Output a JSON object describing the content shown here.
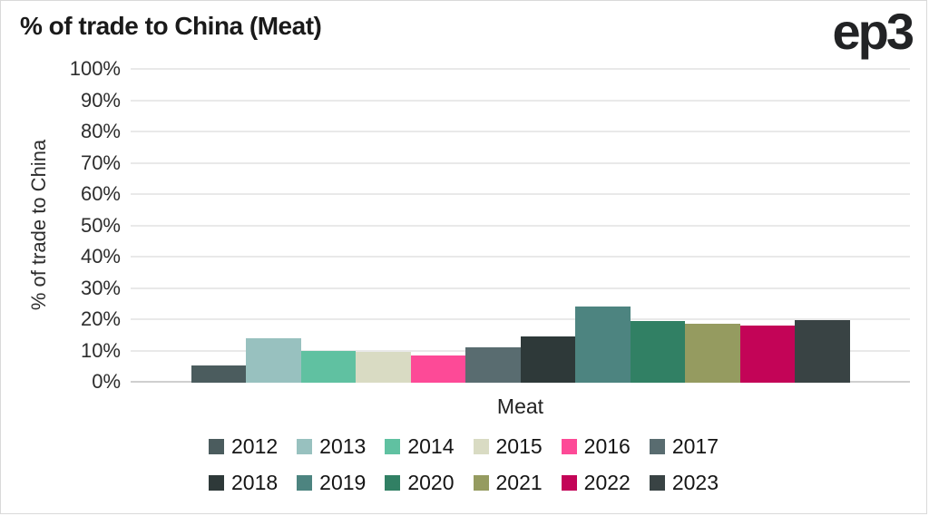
{
  "header": {
    "title": "% of trade to China (Meat)",
    "logo": "ep3"
  },
  "chart_data": {
    "type": "bar",
    "title": "% of trade to China (Meat)",
    "xlabel": "Meat",
    "ylabel": "% of trade to China",
    "ylim": [
      0,
      100
    ],
    "y_tick_labels": [
      "100%",
      "90%",
      "80%",
      "70%",
      "60%",
      "50%",
      "40%",
      "30%",
      "20%",
      "10%",
      "0%"
    ],
    "grid": "horizontal",
    "legend_position": "bottom",
    "categories": [
      "2012",
      "2013",
      "2014",
      "2015",
      "2016",
      "2017",
      "2018",
      "2019",
      "2020",
      "2021",
      "2022",
      "2023"
    ],
    "values": [
      5.5,
      14.1,
      10.2,
      9.9,
      8.7,
      11.4,
      14.8,
      24.3,
      19.8,
      18.9,
      18.3,
      20.1
    ],
    "colors": [
      "#4b5c5e",
      "#98c1bf",
      "#60c1a1",
      "#d9dbc3",
      "#fd4a97",
      "#596c70",
      "#2e3939",
      "#4d8480",
      "#318064",
      "#959b60",
      "#c30457",
      "#394344"
    ]
  }
}
